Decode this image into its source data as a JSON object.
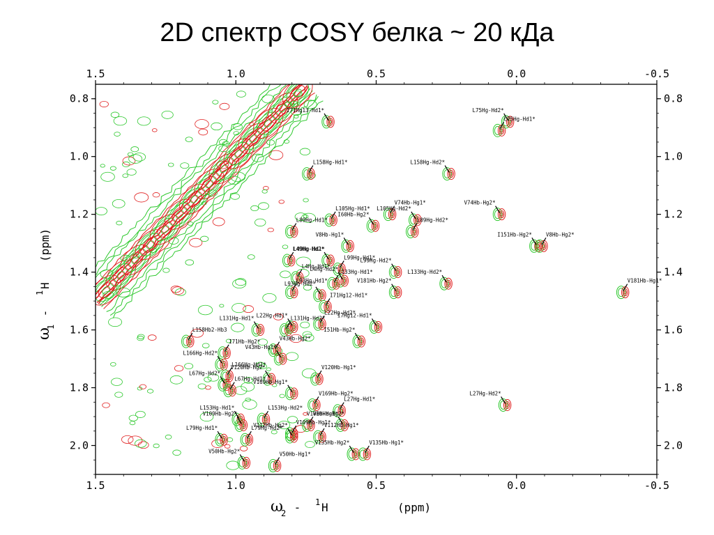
{
  "page": {
    "title": "2D спектр COSY белка ~ 20 кДа"
  },
  "chart_data": {
    "type": "scatter",
    "title": "2D спектр COSY белка ~ 20 кДа",
    "xlabel": {
      "symbol": "ω",
      "sub": "2",
      "sep": " - ",
      "sup": "1",
      "nucleus": "H",
      "unit": "(ppm)"
    },
    "ylabel": {
      "symbol": "ω",
      "sub": "1",
      "sep": " - ",
      "sup": "1",
      "nucleus": "H",
      "unit": "(ppm)"
    },
    "xlim": [
      1.5,
      -0.5
    ],
    "ylim": [
      0.75,
      2.1
    ],
    "x_ticks": [
      1.5,
      1.0,
      0.5,
      0.0,
      -0.5
    ],
    "x_tick_labels": [
      "1.5",
      "1.0",
      "0.5",
      "0.0",
      "-0.5"
    ],
    "y_ticks": [
      0.8,
      1.0,
      1.2,
      1.4,
      1.6,
      1.8,
      2.0
    ],
    "y_tick_labels": [
      "0.8",
      "1.0",
      "1.2",
      "1.4",
      "1.6",
      "1.8",
      "2.0"
    ],
    "x_reversed": true,
    "y_reversed": true,
    "grid": false,
    "colors": {
      "positive": "#e02020",
      "negative": "#2cc82c",
      "frame": "#000000"
    },
    "diagonal": {
      "from": [
        1.5,
        1.5
      ],
      "to": [
        0.75,
        0.75
      ]
    },
    "peaks": [
      {
        "label": "I71Hg13-Hd1*",
        "x": 0.67,
        "y": 0.88
      },
      {
        "label": "L75Hg-Hd1*",
        "x": 0.06,
        "y": 0.91
      },
      {
        "label": "L75Hg-Hd2*",
        "x": 0.03,
        "y": 0.88
      },
      {
        "label": "L158Hg-Hd1*",
        "x": 0.74,
        "y": 1.06
      },
      {
        "label": "L158Hg-Hd2*",
        "x": 0.24,
        "y": 1.06
      },
      {
        "label": "V74Hb-Hg1*",
        "x": 0.45,
        "y": 1.2
      },
      {
        "label": "V74Hb-Hg2*",
        "x": 0.06,
        "y": 1.2
      },
      {
        "label": "L105Hg-Hd1*",
        "x": 0.66,
        "y": 1.22
      },
      {
        "label": "L105Hg-Hd2*",
        "x": 0.36,
        "y": 1.22
      },
      {
        "label": "L89Hg-Hd1*",
        "x": 0.8,
        "y": 1.26
      },
      {
        "label": "I60Hb-Hg2*",
        "x": 0.51,
        "y": 1.24
      },
      {
        "label": "L89Hg-Hd2*",
        "x": 0.37,
        "y": 1.26
      },
      {
        "label": "I151Hb-Hg2*",
        "x": -0.07,
        "y": 1.31
      },
      {
        "label": "V8Hb-Hg2*",
        "x": -0.09,
        "y": 1.31
      },
      {
        "label": "V8Hb-Hg1*",
        "x": 0.6,
        "y": 1.31
      },
      {
        "label": "L49Hg-Hd1*",
        "x": 0.81,
        "y": 1.36
      },
      {
        "label": "L49Hg-Hd2*",
        "x": 0.67,
        "y": 1.36
      },
      {
        "label": "L99Hg-Hd1*",
        "x": 0.63,
        "y": 1.39
      },
      {
        "label": "L99Hg-Hd2*",
        "x": 0.43,
        "y": 1.4
      },
      {
        "label": "L4Hg-Hd1*",
        "x": 0.78,
        "y": 1.42
      },
      {
        "label": "L4Hg-Hd2*",
        "x": 0.62,
        "y": 1.43
      },
      {
        "label": "L133Hg-Hd1*",
        "x": 0.65,
        "y": 1.44
      },
      {
        "label": "L133Hg-Hd2*",
        "x": 0.25,
        "y": 1.44
      },
      {
        "label": "V181Hb-Hg1*",
        "x": -0.38,
        "y": 1.47
      },
      {
        "label": "V181Hb-Hg2*",
        "x": 0.43,
        "y": 1.47
      },
      {
        "label": "L93Hg-Hd1*",
        "x": 0.8,
        "y": 1.47
      },
      {
        "label": "L93Hg-Hd2*",
        "x": 0.7,
        "y": 1.48
      },
      {
        "label": "I71Hg12-Hd1*",
        "x": 0.68,
        "y": 1.52
      },
      {
        "label": "L131Hg-Hd1*",
        "x": 0.92,
        "y": 1.6
      },
      {
        "label": "L131Hg-Hd2*",
        "x": 0.82,
        "y": 1.6
      },
      {
        "label": "L22Hg-Hd1*",
        "x": 0.8,
        "y": 1.59
      },
      {
        "label": "L22Hg-Hd2*",
        "x": 0.7,
        "y": 1.58
      },
      {
        "label": "I7Hg12-Hd1*",
        "x": 0.5,
        "y": 1.59
      },
      {
        "label": "L158Hb2-Hb3",
        "x": 1.17,
        "y": 1.64
      },
      {
        "label": "I51Hb-Hg2*",
        "x": 0.56,
        "y": 1.64
      },
      {
        "label": "V43Hb-Hg2*",
        "x": 0.86,
        "y": 1.67
      },
      {
        "label": "V43Hb-Hg1*",
        "x": 0.84,
        "y": 1.7
      },
      {
        "label": "I71Hb-Hg2*",
        "x": 1.04,
        "y": 1.68
      },
      {
        "label": "L166Hg-Hd2*",
        "x": 1.05,
        "y": 1.72
      },
      {
        "label": "L166Hg-Hd1*",
        "x": 1.03,
        "y": 1.76
      },
      {
        "label": "V120Hb-Hg2*",
        "x": 0.88,
        "y": 1.77
      },
      {
        "label": "V120Hb-Hg1*",
        "x": 0.71,
        "y": 1.77
      },
      {
        "label": "L67Hg-Hd2*",
        "x": 1.04,
        "y": 1.79
      },
      {
        "label": "L67Hg-Hd1*",
        "x": 1.02,
        "y": 1.81
      },
      {
        "label": "V169Hb-Hg1*",
        "x": 0.8,
        "y": 1.82
      },
      {
        "label": "V169Hb-Hg2*",
        "x": 0.72,
        "y": 1.86
      },
      {
        "label": "L27Hg-Hd2*",
        "x": 0.04,
        "y": 1.86
      },
      {
        "label": "L27Hg-Hd1*",
        "x": 0.63,
        "y": 1.88
      },
      {
        "label": "L153Hg-Hd1*",
        "x": 0.99,
        "y": 1.91
      },
      {
        "label": "L153Hg-Hd2*",
        "x": 0.9,
        "y": 1.91
      },
      {
        "label": "V109Hb-Hg2*",
        "x": 0.98,
        "y": 1.93
      },
      {
        "label": "V10Hb-Hg2*",
        "x": 0.74,
        "y": 1.93
      },
      {
        "label": "V10Hb-Hg1*",
        "x": 0.62,
        "y": 1.93
      },
      {
        "label": "V109Hb-Hg1*",
        "x": 0.8,
        "y": 1.96
      },
      {
        "label": "L79Hg-Hd1*",
        "x": 1.05,
        "y": 1.98
      },
      {
        "label": "L79Hg-Hd2*",
        "x": 0.96,
        "y": 1.98
      },
      {
        "label": "V112Hb-Hg2*",
        "x": 0.8,
        "y": 1.97
      },
      {
        "label": "V112Hb-Hg1*",
        "x": 0.7,
        "y": 1.97
      },
      {
        "label": "V135Hb-Hg2*",
        "x": 0.58,
        "y": 2.03
      },
      {
        "label": "V135Hb-Hg1*",
        "x": 0.54,
        "y": 2.03
      },
      {
        "label": "V50Hb-Hg2*",
        "x": 0.97,
        "y": 2.06
      },
      {
        "label": "V50Hb-Hg1*",
        "x": 0.86,
        "y": 2.07
      }
    ]
  }
}
